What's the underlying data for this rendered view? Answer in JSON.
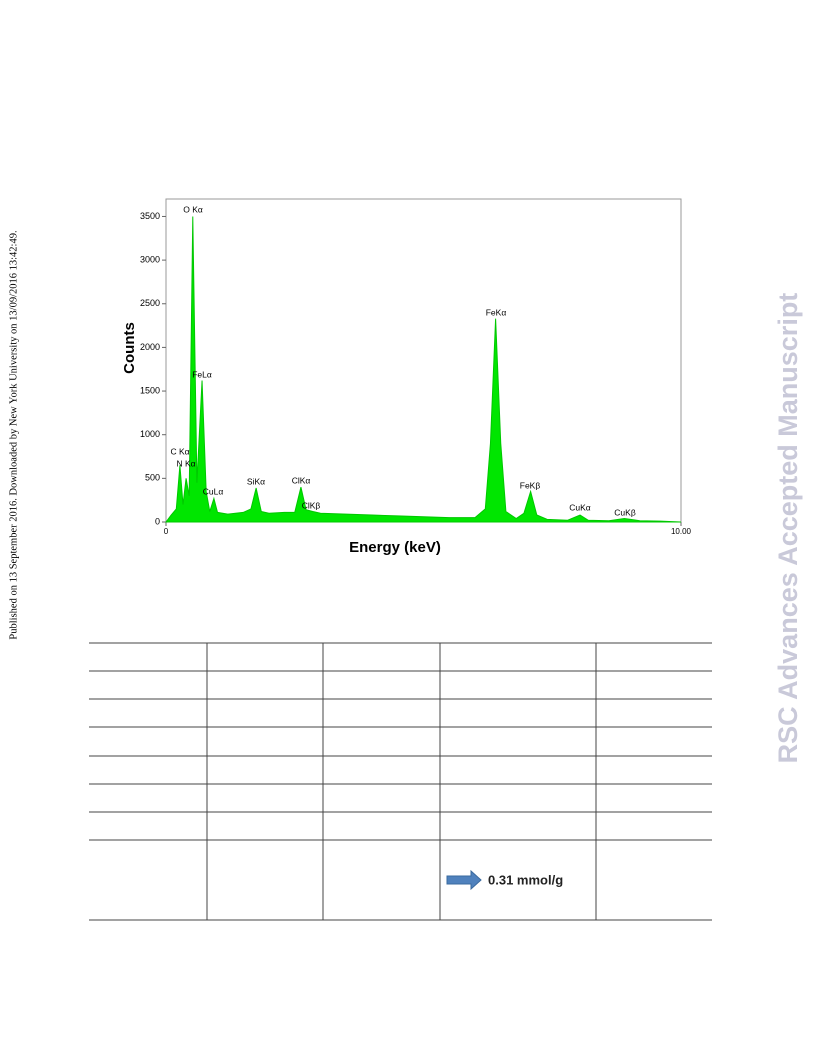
{
  "side_note": "Published on 13 September 2016. Downloaded by New York University on 13/09/2016 13:42:49.",
  "watermark": "RSC Advances Accepted Manuscript",
  "chart_data": {
    "type": "area",
    "x_label": "Energy (keV)",
    "y_label": "Counts",
    "x": [
      0,
      0.1,
      0.2,
      0.27,
      0.33,
      0.39,
      0.45,
      0.52,
      0.6,
      0.7,
      0.78,
      0.85,
      0.93,
      1.0,
      1.2,
      1.5,
      1.65,
      1.75,
      1.85,
      2.0,
      2.3,
      2.5,
      2.62,
      2.72,
      2.85,
      3.0,
      3.5,
      4.0,
      4.5,
      5.0,
      5.5,
      6.0,
      6.2,
      6.3,
      6.4,
      6.5,
      6.6,
      6.8,
      6.95,
      7.08,
      7.2,
      7.4,
      7.8,
      8.04,
      8.2,
      8.6,
      8.9,
      9.2,
      9.6,
      10.0
    ],
    "values": [
      0,
      80,
      150,
      650,
      200,
      500,
      300,
      3500,
      450,
      1620,
      350,
      120,
      270,
      110,
      90,
      110,
      150,
      390,
      120,
      100,
      110,
      110,
      400,
      140,
      120,
      100,
      90,
      80,
      70,
      60,
      50,
      50,
      150,
      900,
      2330,
      900,
      120,
      40,
      100,
      350,
      80,
      30,
      20,
      80,
      20,
      15,
      40,
      15,
      10,
      0
    ],
    "color": "#00e600",
    "xlim": [
      0,
      10
    ],
    "ylim": [
      0,
      3700
    ],
    "xticks": [
      0,
      {
        "value": 10,
        "label": "10.00"
      }
    ],
    "yticks": [
      0,
      500,
      1000,
      1500,
      2000,
      2500,
      3000,
      3500
    ],
    "annotations": [
      "O Kα",
      "C Kα",
      "N Kα",
      "FeLα",
      "CuLα",
      "SiKα",
      "ClKα",
      "ClKβ",
      "FeKα",
      "FeKβ",
      "CuKα",
      "CuKβ"
    ]
  },
  "table": {
    "result": "0.31 mmol/g"
  }
}
